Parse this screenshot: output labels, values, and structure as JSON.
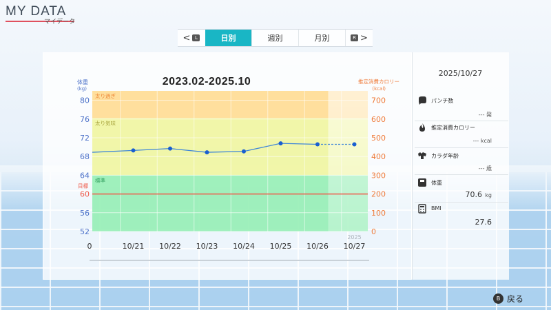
{
  "header": {
    "title": "MY DATA",
    "subtitle": "マイデータ"
  },
  "tabs": {
    "prev_glyph": "<",
    "prev_key": "L",
    "next_glyph": ">",
    "next_key": "R",
    "items": [
      {
        "label": "日別",
        "active": true
      },
      {
        "label": "週別",
        "active": false
      },
      {
        "label": "月別",
        "active": false
      }
    ]
  },
  "chart_title": "2023.02-2025.10",
  "chart_data": {
    "type": "line",
    "title": "2023.02-2025.10",
    "left_axis": {
      "label": "体重",
      "unit": "(kg)",
      "range": [
        52,
        82
      ],
      "ticks": [
        80,
        76,
        72,
        68,
        64,
        60,
        56,
        52
      ]
    },
    "right_axis": {
      "label": "推定消費カロリー",
      "unit": "(kcal)",
      "range": [
        0,
        750
      ],
      "ticks": [
        700,
        600,
        500,
        400,
        300,
        200,
        100,
        0
      ]
    },
    "categories": [
      "0",
      "10/21",
      "10/22",
      "10/23",
      "10/24",
      "10/25",
      "10/26",
      "10/27"
    ],
    "year_label": "2025",
    "bands": [
      {
        "label": "太り過ぎ",
        "from": 76.2,
        "to": 82,
        "color": "#ffd98c"
      },
      {
        "label": "太り気味",
        "from": 64,
        "to": 76.2,
        "color": "#eef59a"
      },
      {
        "label": "標準",
        "from": 52,
        "to": 64,
        "color": "#8fedb0"
      }
    ],
    "target": {
      "label": "目標",
      "value": 60,
      "color": "#ef5a4a"
    },
    "series": [
      {
        "values": [
          68.9,
          69.3,
          69.7,
          68.9,
          69.1,
          70.8,
          70.6,
          70.6
        ]
      }
    ]
  },
  "side": {
    "date": "2025/10/27",
    "punch": {
      "label": "パンチ数",
      "value": "--- 発"
    },
    "calories": {
      "label": "推定消費カロリー",
      "value": "--- kcal"
    },
    "body_age": {
      "label": "カラダ年齢",
      "value": "--- 歳"
    },
    "weight": {
      "label": "体重",
      "value": "70.6",
      "unit": "kg"
    },
    "bmi": {
      "label": "BMI",
      "value": "27.6"
    }
  },
  "footer": {
    "back_key": "B",
    "back_label": "戻る"
  },
  "colors": {
    "accent": "#19b6c5",
    "left_axis": "#4d72c9",
    "right_axis": "#ef7b3a",
    "line": "#1a5fd0"
  }
}
